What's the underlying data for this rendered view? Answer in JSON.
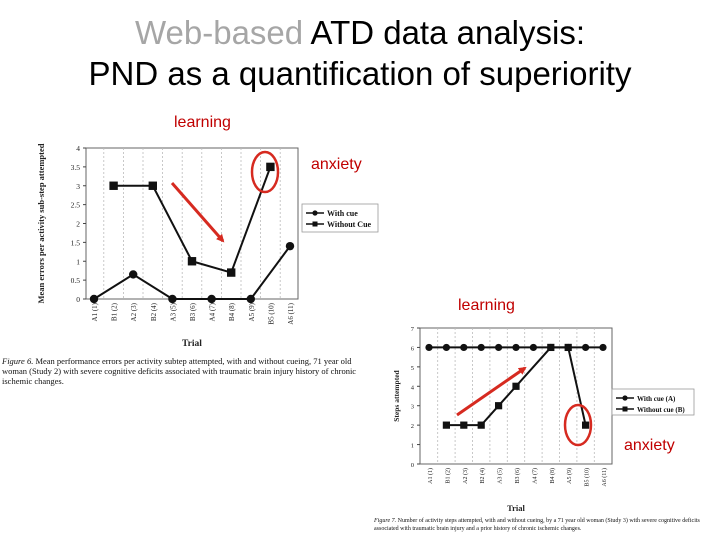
{
  "slide": {
    "title_line1_grey": "Web-based",
    "title_line1_rest": " ATD data analysis:",
    "title_line2": "PND as a quantification of superiority"
  },
  "annotations": {
    "learning_1": "learning",
    "anxiety_1": "anxiety",
    "learning_2": "learning",
    "anxiety_2": "anxiety",
    "color": "#c00000"
  },
  "figure1_caption": {
    "label": "Figure 6.",
    "text": "Mean performance errors per activity subtep attempted, with and without cueing, 71 year old woman (Study 2) with severe cognitive deficits associated with traumatic brain injury history of chronic ischemic changes."
  },
  "figure2_caption": {
    "label": "Figure 7.",
    "text": "Number of activity steps attempted, with and without cueing, by a 71 year old woman (Study 3) with severe cognitive deficits associated with traumatic brain injury and a prior history of chronic ischemic changes."
  },
  "chart_data": [
    {
      "type": "line",
      "xlabel": "Trial",
      "ylabel": "Mean errors per activity sub-step attempted",
      "ylim": [
        0,
        4
      ],
      "yticks": [
        "0",
        "0.5",
        "1",
        "1.5",
        "2",
        "2.5",
        "3",
        "3.5",
        "4"
      ],
      "categories": [
        "A1 (1)",
        "B1 (2)",
        "A2 (3)",
        "B2 (4)",
        "A3 (5)",
        "B3 (6)",
        "A4 (7)",
        "B4 (8)",
        "A5 (9)",
        "B5 (10)",
        "A6 (11)"
      ],
      "legend_position": "right",
      "series": [
        {
          "name": "With cue",
          "marker": "circle",
          "x": [
            "A1 (1)",
            "A2 (3)",
            "A3 (5)",
            "A4 (7)",
            "A5 (9)",
            "A6 (11)"
          ],
          "values": [
            0,
            0.65,
            0,
            0,
            0,
            1.4
          ]
        },
        {
          "name": "Without Cue",
          "marker": "square",
          "x": [
            "B1 (2)",
            "B2 (4)",
            "B3 (6)",
            "B4 (8)",
            "B5 (10)"
          ],
          "values": [
            3,
            3,
            1,
            0.7,
            3.5
          ]
        }
      ]
    },
    {
      "type": "line",
      "xlabel": "Trial",
      "ylabel": "Steps attempted",
      "ylim": [
        0,
        7
      ],
      "yticks": [
        "0",
        "1",
        "2",
        "3",
        "4",
        "5",
        "6",
        "7"
      ],
      "categories": [
        "A1 (1)",
        "B1 (2)",
        "A2 (3)",
        "B2 (4)",
        "A3 (5)",
        "B3 (6)",
        "A4 (7)",
        "B4 (8)",
        "A5 (9)",
        "B5 (10)",
        "A6 (11)"
      ],
      "legend_position": "right",
      "series": [
        {
          "name": "With cue (A)",
          "marker": "circle",
          "x": [
            "A1 (1)",
            "B1 (2)",
            "A2 (3)",
            "B2 (4)",
            "A3 (5)",
            "B3 (6)",
            "A4 (7)",
            "B4 (8)",
            "A5 (9)",
            "B5 (10)",
            "A6 (11)"
          ],
          "values": [
            6,
            6,
            6,
            6,
            6,
            6,
            6,
            6,
            6,
            6,
            6
          ]
        },
        {
          "name": "Without cue (B)",
          "marker": "square",
          "x": [
            "B1 (2)",
            "A2 (3)",
            "B2 (4)",
            "A3 (5)",
            "B3 (6)",
            "B4 (8)",
            "A5 (9)",
            "B5 (10)"
          ],
          "values": [
            2,
            2,
            2,
            3,
            4,
            6,
            6,
            2
          ]
        }
      ]
    }
  ]
}
